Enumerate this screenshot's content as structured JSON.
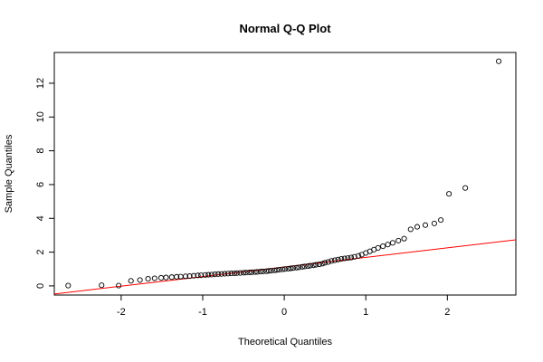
{
  "chart_data": {
    "type": "scatter",
    "title": "Normal Q-Q Plot",
    "x_label": "Theoretical Quantiles",
    "y_label": "Sample Quantiles",
    "x": [
      -2.65,
      -2.24,
      -2.03,
      -1.88,
      -1.77,
      -1.67,
      -1.59,
      -1.51,
      -1.45,
      -1.38,
      -1.32,
      -1.27,
      -1.21,
      -1.16,
      -1.11,
      -1.06,
      -1.02,
      -0.97,
      -0.93,
      -0.89,
      -0.85,
      -0.81,
      -0.77,
      -0.73,
      -0.69,
      -0.65,
      -0.61,
      -0.58,
      -0.54,
      -0.5,
      -0.47,
      -0.43,
      -0.4,
      -0.36,
      -0.33,
      -0.29,
      -0.26,
      -0.22,
      -0.19,
      -0.16,
      -0.12,
      -0.09,
      -0.06,
      -0.02,
      0.01,
      0.05,
      0.08,
      0.11,
      0.15,
      0.18,
      0.22,
      0.25,
      0.29,
      0.32,
      0.36,
      0.39,
      0.43,
      0.47,
      0.5,
      0.54,
      0.58,
      0.62,
      0.66,
      0.7,
      0.74,
      0.78,
      0.82,
      0.86,
      0.91,
      0.95,
      1.0,
      1.05,
      1.1,
      1.15,
      1.21,
      1.27,
      1.33,
      1.4,
      1.47,
      1.55,
      1.63,
      1.73,
      1.84,
      1.92,
      2.02,
      2.22,
      2.63
    ],
    "values": [
      0.02,
      0.04,
      0.02,
      0.3,
      0.35,
      0.42,
      0.45,
      0.48,
      0.5,
      0.52,
      0.54,
      0.55,
      0.57,
      0.58,
      0.6,
      0.62,
      0.63,
      0.65,
      0.66,
      0.67,
      0.69,
      0.7,
      0.71,
      0.72,
      0.73,
      0.74,
      0.75,
      0.76,
      0.77,
      0.78,
      0.79,
      0.8,
      0.81,
      0.82,
      0.83,
      0.85,
      0.86,
      0.87,
      0.89,
      0.9,
      0.92,
      0.94,
      0.96,
      0.98,
      1.0,
      1.02,
      1.04,
      1.06,
      1.08,
      1.1,
      1.13,
      1.15,
      1.17,
      1.2,
      1.22,
      1.25,
      1.28,
      1.32,
      1.37,
      1.42,
      1.48,
      1.52,
      1.56,
      1.6,
      1.63,
      1.65,
      1.68,
      1.72,
      1.78,
      1.85,
      1.95,
      2.05,
      2.15,
      2.25,
      2.35,
      2.45,
      2.55,
      2.68,
      2.8,
      3.35,
      3.5,
      3.6,
      3.7,
      3.9,
      5.45,
      5.8,
      13.3
    ],
    "color": "#000000",
    "reference_line": {
      "intercept": 1.12,
      "slope": 0.567,
      "color": "#ff0000"
    },
    "xlim": [
      -2.82,
      2.84
    ],
    "ylim": [
      -0.54,
      13.82
    ],
    "xticks": [
      -2,
      -1,
      0,
      1,
      2
    ],
    "yticks": [
      0,
      2,
      4,
      6,
      8,
      10,
      12
    ]
  }
}
